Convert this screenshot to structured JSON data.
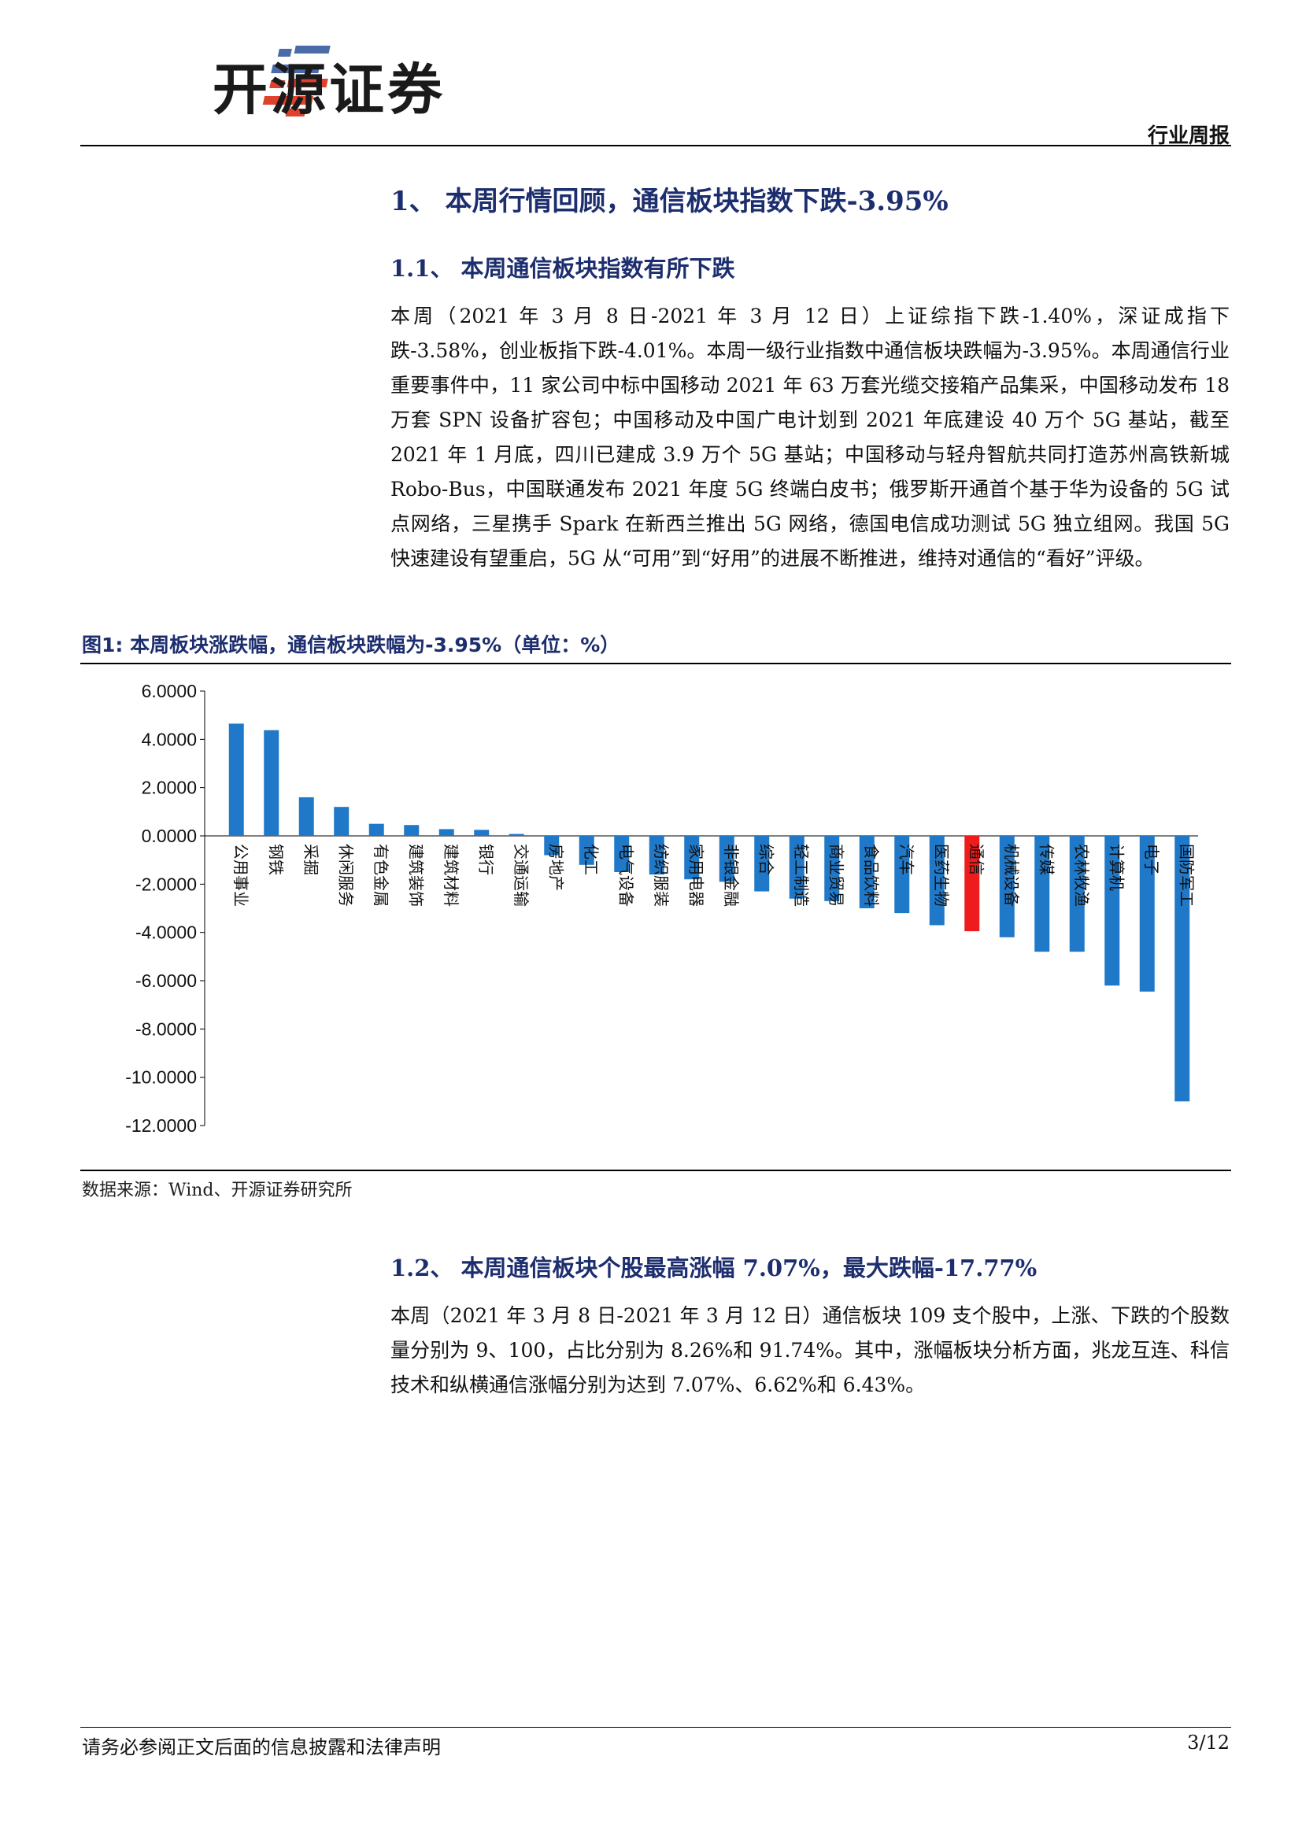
{
  "header": {
    "logo_text": "开源证券",
    "report_type": "行业周报"
  },
  "section1": {
    "title": "1、 本周行情回顾，通信板块指数下跌-3.95%"
  },
  "section1_1": {
    "title": "1.1、 本周通信板块指数有所下跌",
    "paragraph": "本周（2021 年 3 月 8 日-2021 年 3 月 12 日）上证综指下跌-1.40%，深证成指下跌-3.58%，创业板指下跌-4.01%。本周一级行业指数中通信板块跌幅为-3.95%。本周通信行业重要事件中，11 家公司中标中国移动 2021 年 63 万套光缆交接箱产品集采，中国移动发布 18 万套 SPN 设备扩容包；中国移动及中国广电计划到 2021 年底建设 40 万个 5G 基站，截至 2021 年 1 月底，四川已建成 3.9 万个 5G 基站；中国移动与轻舟智航共同打造苏州高铁新城 Robo-Bus，中国联通发布 2021 年度 5G 终端白皮书；俄罗斯开通首个基于华为设备的 5G 试点网络，三星携手 Spark 在新西兰推出 5G 网络，德国电信成功测试 5G 独立组网。我国 5G 快速建设有望重启，5G 从“可用”到“好用”的进展不断推进，维持对通信的“看好”评级。"
  },
  "figure1": {
    "title": "图1: 本周板块涨跌幅，通信板块跌幅为-3.95%（单位：%）",
    "source": "数据来源：Wind、开源证券研究所"
  },
  "chart_data": {
    "type": "bar",
    "categories": [
      "公用事业",
      "钢铁",
      "采掘",
      "休闲服务",
      "有色金属",
      "建筑装饰",
      "建筑材料",
      "银行",
      "交通运输",
      "房地产",
      "化工",
      "电气设备",
      "纺织服装",
      "家用电器",
      "非银金融",
      "综合",
      "轻工制造",
      "商业贸易",
      "食品饮料",
      "汽车",
      "医药生物",
      "通信",
      "机械设备",
      "传媒",
      "农林牧渔",
      "计算机",
      "电子",
      "国防军工"
    ],
    "values": [
      4.65,
      4.38,
      1.6,
      1.2,
      0.5,
      0.45,
      0.28,
      0.25,
      0.08,
      -0.8,
      -1.2,
      -1.5,
      -1.6,
      -1.8,
      -1.9,
      -2.3,
      -2.6,
      -2.7,
      -3.0,
      -3.2,
      -3.7,
      -3.95,
      -4.2,
      -4.8,
      -4.8,
      -6.2,
      -6.45,
      -11.0
    ],
    "highlight_category": "通信",
    "bar_color": "#1f78c8",
    "highlight_color": "#ee1c1c",
    "yticks": [
      "6.0000",
      "4.0000",
      "2.0000",
      "0.0000",
      "-2.0000",
      "-4.0000",
      "-6.0000",
      "-8.0000",
      "-10.0000",
      "-12.0000"
    ],
    "ylim": [
      -12,
      6
    ],
    "grid": false
  },
  "section1_2": {
    "title": "1.2、 本周通信板块个股最高涨幅 7.07%，最大跌幅-17.77%",
    "paragraph": "本周（2021 年 3 月 8 日-2021 年 3 月 12 日）通信板块 109 支个股中，上涨、下跌的个股数量分别为 9、100，占比分别为 8.26%和 91.74%。其中，涨幅板块分析方面，兆龙互连、科信技术和纵横通信涨幅分别为达到 7.07%、6.62%和 6.43%。"
  },
  "footer": {
    "disclaimer": "请务必参阅正文后面的信息披露和法律声明",
    "page": "3/12"
  }
}
